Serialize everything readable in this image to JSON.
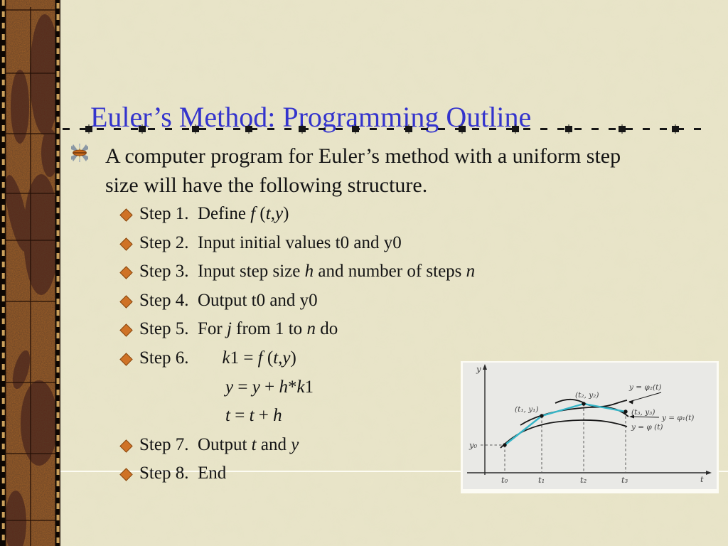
{
  "colors": {
    "background": "#e9e5c9",
    "title_blue": "#3434cd",
    "text_black": "#141414",
    "bullet_orange": "#cf7226",
    "euler_cyan": "#35b5c7",
    "border_base": "#a26127",
    "border_leaf": "#53261a",
    "fig_bg": "#e9e9e6"
  },
  "slide": {
    "title": "Euler’s Method: Programming Outline",
    "intro": {
      "line1": "A computer program for Euler’s method with a uniform step",
      "line2": "size will have the following structure."
    },
    "steps": [
      {
        "bullet": true,
        "parts": [
          "Step 1.  Define ",
          {
            "i": "f"
          },
          " (",
          {
            "i": "t"
          },
          ",",
          {
            "i": "y"
          },
          ")"
        ]
      },
      {
        "bullet": true,
        "parts": [
          "Step 2.  Input initial values t0 and y0"
        ]
      },
      {
        "bullet": true,
        "parts": [
          "Step 3.  Input step size ",
          {
            "i": "h"
          },
          " and number of steps ",
          {
            "i": "n"
          }
        ]
      },
      {
        "bullet": true,
        "parts": [
          "Step 4.  Output t0 and y0"
        ]
      },
      {
        "bullet": true,
        "parts": [
          "Step 5.  For ",
          {
            "i": "j"
          },
          " from 1 to ",
          {
            "i": "n"
          },
          " do"
        ]
      },
      {
        "bullet": true,
        "parts": [
          "Step 6.",
          {
            "gap": true
          },
          {
            "i": "k"
          },
          "1 = ",
          {
            "i": "f"
          },
          " (",
          {
            "i": "t"
          },
          ",",
          {
            "i": "y"
          },
          ")"
        ]
      },
      {
        "bullet": false,
        "parts": [
          {
            "i": "y"
          },
          " = ",
          {
            "i": "y"
          },
          " + ",
          {
            "i": "h"
          },
          "*",
          {
            "i": "k"
          },
          "1"
        ]
      },
      {
        "bullet": false,
        "parts": [
          {
            "i": "t"
          },
          " = ",
          {
            "i": "t"
          },
          " + ",
          {
            "i": "h"
          }
        ]
      },
      {
        "bullet": true,
        "parts": [
          "Step 7.  Output ",
          {
            "i": "t"
          },
          " and ",
          {
            "i": "y"
          }
        ]
      },
      {
        "bullet": true,
        "parts": [
          "Step 8.  End"
        ]
      }
    ]
  },
  "figure": {
    "axis": {
      "y": "y",
      "t": "t"
    },
    "y0": "y₀",
    "ticks": [
      "t₀",
      "t₁",
      "t₂",
      "t₃"
    ],
    "points": [
      "(t₁, y₁)",
      "(t₂, y₂)",
      "(t₃, y₃)"
    ],
    "curves": [
      "y = φ₂(t)",
      "y = φ₁(t)",
      "y = φ (t)"
    ]
  }
}
